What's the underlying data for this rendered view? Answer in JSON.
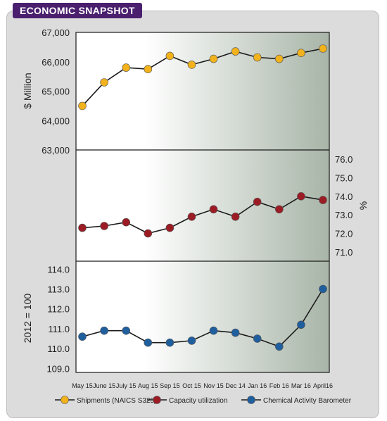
{
  "header": {
    "title": "ECONOMIC SNAPSHOT"
  },
  "colors": {
    "banner": "#4a1f6e",
    "frame_bg": "#dcdcdc",
    "shipments": "#f2b21c",
    "capacity": "#9b1c24",
    "cab": "#1f5f9e",
    "line": "#1a1a1a",
    "gradient_light": "#ffffff",
    "gradient_dark": "#a8b5a8"
  },
  "chart_data": {
    "type": "line",
    "categories": [
      "May 15",
      "June 15",
      "July 15",
      "Aug 15",
      "Sep 15",
      "Oct 15",
      "Nov 15",
      "Dec 14",
      "Jan 16",
      "Feb 16",
      "Mar 16",
      "April16"
    ],
    "panels": [
      {
        "ylabel": "$ Million",
        "ylim": [
          63000,
          67000
        ],
        "ticks": [
          {
            "value": 63000,
            "label": "63,000"
          },
          {
            "value": 64000,
            "label": "64,000"
          },
          {
            "value": 65000,
            "label": "65,000"
          },
          {
            "value": 66000,
            "label": "66,000"
          },
          {
            "value": 67000,
            "label": "67,000"
          }
        ],
        "axis_side": "left",
        "series": [
          {
            "name": "Shipments (NAICS S325)",
            "values": [
              64500,
              65300,
              65800,
              65750,
              66200,
              65900,
              66100,
              66350,
              66150,
              66100,
              66300,
              66450
            ]
          }
        ]
      },
      {
        "ylabel": "%",
        "ylim": [
          70.5,
          76.5
        ],
        "ticks": [
          {
            "value": 71.0,
            "label": "71.0"
          },
          {
            "value": 72.0,
            "label": "72.0"
          },
          {
            "value": 73.0,
            "label": "73.0"
          },
          {
            "value": 74.0,
            "label": "74.0"
          },
          {
            "value": 75.0,
            "label": "75.0"
          },
          {
            "value": 76.0,
            "label": "76.0"
          }
        ],
        "axis_side": "right",
        "series": [
          {
            "name": "Capacity utilization",
            "values": [
              72.3,
              72.4,
              72.6,
              72.0,
              72.3,
              72.9,
              73.3,
              72.9,
              73.7,
              73.3,
              74.0,
              73.8
            ]
          }
        ]
      },
      {
        "ylabel": "2012 = 100",
        "ylim": [
          108.8,
          114.4
        ],
        "ticks": [
          {
            "value": 109.0,
            "label": "109.0"
          },
          {
            "value": 110.0,
            "label": "110.0"
          },
          {
            "value": 111.0,
            "label": "111.0"
          },
          {
            "value": 112.0,
            "label": "112.0"
          },
          {
            "value": 113.0,
            "label": "113.0"
          },
          {
            "value": 114.0,
            "label": "114.0"
          }
        ],
        "axis_side": "left",
        "series": [
          {
            "name": "Chemical Activity Barometer",
            "values": [
              110.6,
              110.9,
              110.9,
              110.3,
              110.3,
              110.4,
              110.9,
              110.8,
              110.5,
              110.1,
              111.2,
              113.0
            ]
          }
        ]
      }
    ],
    "legend": {
      "placement": "bottom",
      "items": [
        "Shipments (NAICS S325)",
        "Capacity utilization",
        "Chemical Activity Barometer"
      ]
    }
  }
}
